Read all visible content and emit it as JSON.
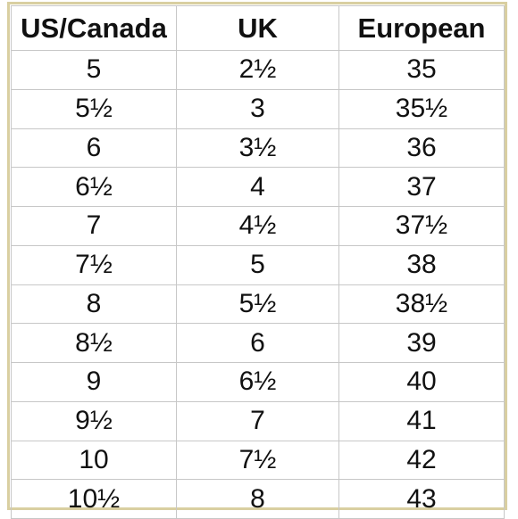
{
  "table": {
    "headers": [
      "US/Canada",
      "UK",
      "European"
    ],
    "rows": [
      [
        "5",
        "2½",
        "35"
      ],
      [
        "5½",
        "3",
        "35½"
      ],
      [
        "6",
        "3½",
        "36"
      ],
      [
        "6½",
        "4",
        "37"
      ],
      [
        "7",
        "4½",
        "37½"
      ],
      [
        "7½",
        "5",
        "38"
      ],
      [
        "8",
        "5½",
        "38½"
      ],
      [
        "8½",
        "6",
        "39"
      ],
      [
        "9",
        "6½",
        "40"
      ],
      [
        "9½",
        "7",
        "41"
      ],
      [
        "10",
        "7½",
        "42"
      ],
      [
        "10½",
        "8",
        "43"
      ]
    ]
  },
  "colors": {
    "border_outer": "#d9cfa1",
    "grid": "#c7c7c7",
    "text": "#111111"
  }
}
